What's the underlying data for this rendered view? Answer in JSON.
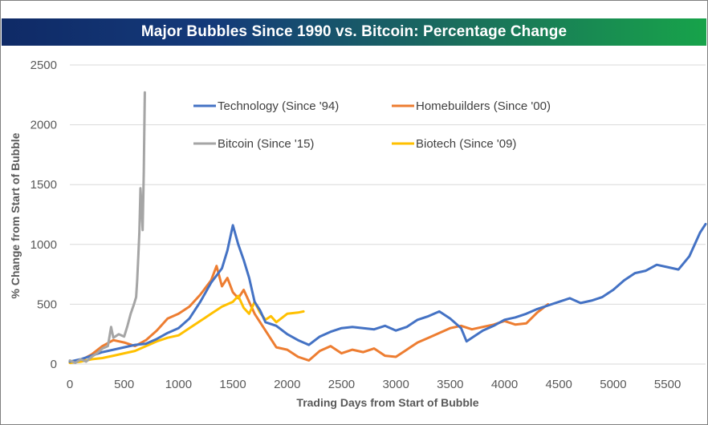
{
  "chart_data": {
    "type": "line",
    "title": "Major Bubbles Since 1990 vs. Bitcoin: Percentage Change",
    "xlabel": "Trading Days from Start of Bubble",
    "ylabel": "% Change from Start of Bubble",
    "xlim": [
      0,
      5850
    ],
    "ylim": [
      0,
      2500
    ],
    "x_ticks": [
      0,
      500,
      1000,
      1500,
      2000,
      2500,
      3000,
      3500,
      4000,
      4500,
      5000,
      5500
    ],
    "y_ticks": [
      0,
      500,
      1000,
      1500,
      2000,
      2500
    ],
    "grid": "horizontal",
    "legend_position": "top-center",
    "series": [
      {
        "name": "Technology (Since '94)",
        "color": "#4472c4",
        "points": [
          [
            0,
            20
          ],
          [
            100,
            40
          ],
          [
            200,
            70
          ],
          [
            300,
            100
          ],
          [
            400,
            120
          ],
          [
            500,
            140
          ],
          [
            600,
            160
          ],
          [
            700,
            170
          ],
          [
            800,
            210
          ],
          [
            900,
            260
          ],
          [
            1000,
            300
          ],
          [
            1100,
            380
          ],
          [
            1200,
            520
          ],
          [
            1300,
            680
          ],
          [
            1400,
            800
          ],
          [
            1450,
            950
          ],
          [
            1500,
            1160
          ],
          [
            1550,
            1000
          ],
          [
            1600,
            870
          ],
          [
            1650,
            720
          ],
          [
            1700,
            520
          ],
          [
            1750,
            450
          ],
          [
            1800,
            350
          ],
          [
            1900,
            320
          ],
          [
            2000,
            250
          ],
          [
            2100,
            200
          ],
          [
            2200,
            160
          ],
          [
            2300,
            230
          ],
          [
            2400,
            270
          ],
          [
            2500,
            300
          ],
          [
            2600,
            310
          ],
          [
            2700,
            300
          ],
          [
            2800,
            290
          ],
          [
            2900,
            320
          ],
          [
            3000,
            280
          ],
          [
            3100,
            310
          ],
          [
            3200,
            370
          ],
          [
            3300,
            400
          ],
          [
            3400,
            440
          ],
          [
            3500,
            380
          ],
          [
            3600,
            300
          ],
          [
            3650,
            190
          ],
          [
            3700,
            220
          ],
          [
            3800,
            280
          ],
          [
            3900,
            320
          ],
          [
            4000,
            370
          ],
          [
            4100,
            390
          ],
          [
            4200,
            420
          ],
          [
            4300,
            460
          ],
          [
            4400,
            490
          ],
          [
            4500,
            520
          ],
          [
            4600,
            550
          ],
          [
            4700,
            510
          ],
          [
            4800,
            530
          ],
          [
            4900,
            560
          ],
          [
            5000,
            620
          ],
          [
            5100,
            700
          ],
          [
            5200,
            760
          ],
          [
            5300,
            780
          ],
          [
            5400,
            830
          ],
          [
            5500,
            810
          ],
          [
            5600,
            790
          ],
          [
            5700,
            900
          ],
          [
            5800,
            1100
          ],
          [
            5850,
            1170
          ]
        ]
      },
      {
        "name": "Homebuilders (Since '00)",
        "color": "#ed7d31",
        "points": [
          [
            0,
            10
          ],
          [
            100,
            30
          ],
          [
            200,
            80
          ],
          [
            300,
            150
          ],
          [
            400,
            200
          ],
          [
            500,
            180
          ],
          [
            600,
            150
          ],
          [
            700,
            200
          ],
          [
            800,
            280
          ],
          [
            900,
            380
          ],
          [
            1000,
            420
          ],
          [
            1100,
            480
          ],
          [
            1200,
            580
          ],
          [
            1300,
            700
          ],
          [
            1350,
            820
          ],
          [
            1400,
            650
          ],
          [
            1450,
            720
          ],
          [
            1500,
            600
          ],
          [
            1550,
            550
          ],
          [
            1600,
            620
          ],
          [
            1650,
            520
          ],
          [
            1700,
            420
          ],
          [
            1800,
            280
          ],
          [
            1900,
            140
          ],
          [
            2000,
            120
          ],
          [
            2100,
            60
          ],
          [
            2200,
            30
          ],
          [
            2300,
            110
          ],
          [
            2400,
            150
          ],
          [
            2500,
            90
          ],
          [
            2600,
            120
          ],
          [
            2700,
            100
          ],
          [
            2800,
            130
          ],
          [
            2900,
            70
          ],
          [
            3000,
            60
          ],
          [
            3100,
            120
          ],
          [
            3200,
            180
          ],
          [
            3300,
            220
          ],
          [
            3400,
            260
          ],
          [
            3500,
            300
          ],
          [
            3600,
            320
          ],
          [
            3700,
            290
          ],
          [
            3800,
            310
          ],
          [
            3900,
            330
          ],
          [
            4000,
            360
          ],
          [
            4100,
            330
          ],
          [
            4200,
            340
          ],
          [
            4300,
            430
          ],
          [
            4400,
            500
          ]
        ]
      },
      {
        "name": "Bitcoin (Since '15)",
        "color": "#a5a5a5",
        "points": [
          [
            0,
            30
          ],
          [
            50,
            10
          ],
          [
            100,
            40
          ],
          [
            150,
            20
          ],
          [
            200,
            60
          ],
          [
            250,
            90
          ],
          [
            300,
            130
          ],
          [
            350,
            150
          ],
          [
            380,
            310
          ],
          [
            400,
            220
          ],
          [
            450,
            250
          ],
          [
            500,
            230
          ],
          [
            530,
            320
          ],
          [
            560,
            420
          ],
          [
            590,
            500
          ],
          [
            610,
            560
          ],
          [
            620,
            700
          ],
          [
            630,
            900
          ],
          [
            640,
            1100
          ],
          [
            650,
            1470
          ],
          [
            660,
            1300
          ],
          [
            670,
            1120
          ],
          [
            680,
            1600
          ],
          [
            690,
            2270
          ]
        ]
      },
      {
        "name": "Biotech (Since '09)",
        "color": "#ffc000",
        "points": [
          [
            0,
            10
          ],
          [
            100,
            20
          ],
          [
            200,
            40
          ],
          [
            300,
            50
          ],
          [
            400,
            70
          ],
          [
            500,
            90
          ],
          [
            600,
            110
          ],
          [
            700,
            150
          ],
          [
            800,
            190
          ],
          [
            900,
            220
          ],
          [
            1000,
            240
          ],
          [
            1100,
            300
          ],
          [
            1200,
            360
          ],
          [
            1300,
            420
          ],
          [
            1400,
            480
          ],
          [
            1500,
            520
          ],
          [
            1550,
            570
          ],
          [
            1600,
            470
          ],
          [
            1650,
            420
          ],
          [
            1700,
            520
          ],
          [
            1750,
            430
          ],
          [
            1800,
            370
          ],
          [
            1850,
            400
          ],
          [
            1900,
            350
          ],
          [
            2000,
            420
          ],
          [
            2100,
            430
          ],
          [
            2150,
            440
          ]
        ]
      }
    ]
  }
}
